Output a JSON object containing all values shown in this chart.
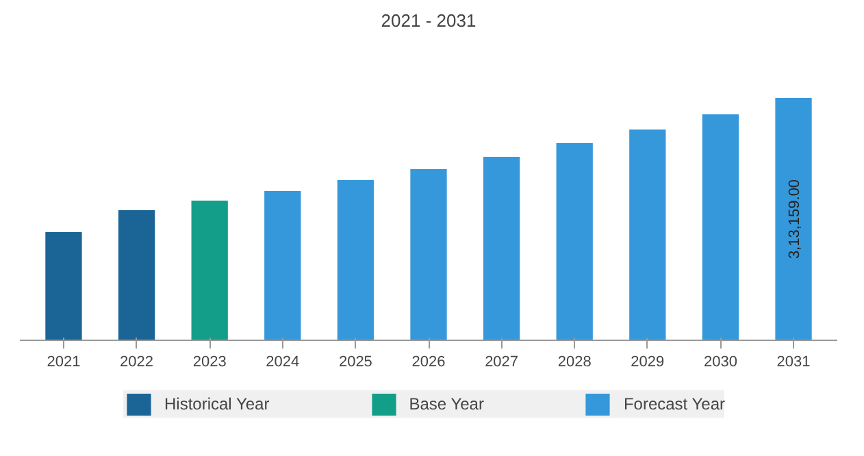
{
  "chart_data": {
    "type": "bar",
    "title": "2021 - 2031",
    "categories": [
      "2021",
      "2022",
      "2023",
      "2024",
      "2025",
      "2026",
      "2027",
      "2028",
      "2029",
      "2030",
      "2031"
    ],
    "series": [
      {
        "name": "Historical Year",
        "color": "#1a6496",
        "values": [
          139700,
          168200,
          null,
          null,
          null,
          null,
          null,
          null,
          null,
          null,
          null
        ]
      },
      {
        "name": "Base Year",
        "color": "#139e8a",
        "values": [
          null,
          null,
          180400,
          null,
          null,
          null,
          null,
          null,
          null,
          null,
          null
        ]
      },
      {
        "name": "Forecast Year",
        "color": "#3598db",
        "values": [
          null,
          null,
          null,
          192900,
          207000,
          221100,
          237100,
          254900,
          272400,
          291900,
          313159
        ],
        "value_labels": [
          null,
          null,
          null,
          null,
          null,
          null,
          null,
          null,
          null,
          null,
          "3,13,159.00"
        ]
      }
    ],
    "tick_labels": "x",
    "legend": "bottom"
  }
}
